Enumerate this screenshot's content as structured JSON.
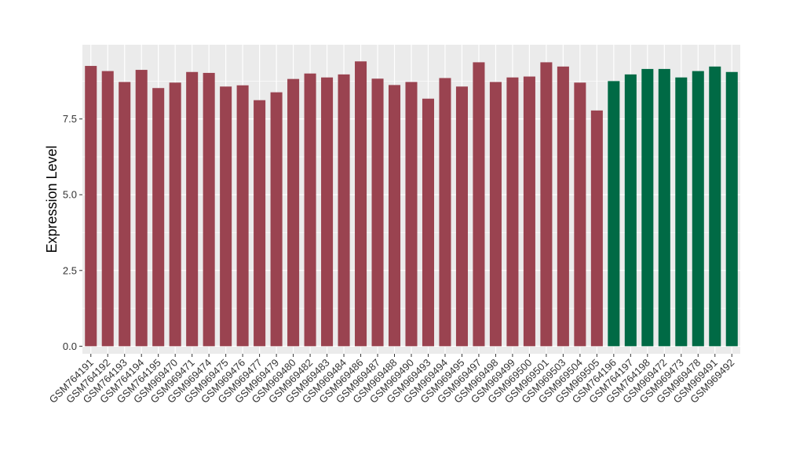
{
  "chart_data": {
    "type": "bar",
    "title": "",
    "xlabel": "",
    "ylabel": "Expression Level",
    "ylim": [
      -0.25,
      9.95
    ],
    "yticks": [
      0.0,
      2.5,
      5.0,
      7.5
    ],
    "ytick_labels": [
      "0.0",
      "2.5",
      "5.0",
      "7.5"
    ],
    "grid": true,
    "colors": {
      "group_a": "#9a4350",
      "group_b": "#006a45",
      "panel": "#ebebeb",
      "grid": "#ffffff"
    },
    "categories": [
      "GSM764191",
      "GSM764192",
      "GSM764193",
      "GSM764194",
      "GSM764195",
      "GSM969470",
      "GSM969471",
      "GSM969474",
      "GSM969475",
      "GSM969476",
      "GSM969477",
      "GSM969479",
      "GSM969480",
      "GSM969482",
      "GSM969483",
      "GSM969484",
      "GSM969486",
      "GSM969487",
      "GSM969488",
      "GSM969490",
      "GSM969493",
      "GSM969494",
      "GSM969495",
      "GSM969497",
      "GSM969498",
      "GSM969499",
      "GSM969500",
      "GSM969501",
      "GSM969503",
      "GSM969504",
      "GSM969505",
      "GSM764196",
      "GSM764197",
      "GSM764198",
      "GSM969472",
      "GSM969473",
      "GSM969478",
      "GSM969491",
      "GSM969492"
    ],
    "values": [
      9.25,
      9.08,
      8.72,
      9.12,
      8.52,
      8.7,
      9.05,
      9.02,
      8.57,
      8.61,
      8.12,
      8.38,
      8.82,
      9.0,
      8.87,
      8.97,
      9.4,
      8.83,
      8.62,
      8.72,
      8.17,
      8.85,
      8.57,
      9.37,
      8.72,
      8.87,
      8.9,
      9.37,
      9.23,
      8.7,
      7.78,
      8.75,
      8.97,
      9.15,
      9.15,
      8.87,
      9.08,
      9.23,
      9.05
    ],
    "groups": [
      "a",
      "a",
      "a",
      "a",
      "a",
      "a",
      "a",
      "a",
      "a",
      "a",
      "a",
      "a",
      "a",
      "a",
      "a",
      "a",
      "a",
      "a",
      "a",
      "a",
      "a",
      "a",
      "a",
      "a",
      "a",
      "a",
      "a",
      "a",
      "a",
      "a",
      "a",
      "b",
      "b",
      "b",
      "b",
      "b",
      "b",
      "b",
      "b"
    ]
  }
}
